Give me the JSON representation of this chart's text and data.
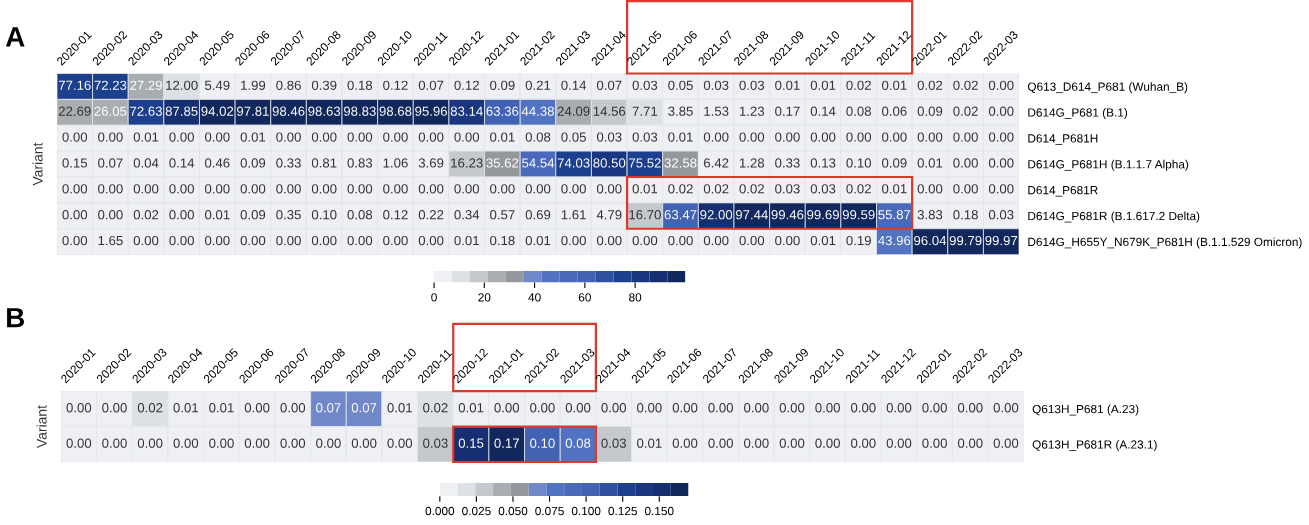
{
  "chart_data": [
    {
      "type": "heatmap",
      "title": "A",
      "ylabel": "Variant",
      "categories": [
        "2020-01",
        "2020-02",
        "2020-03",
        "2020-04",
        "2020-05",
        "2020-06",
        "2020-07",
        "2020-08",
        "2020-09",
        "2020-10",
        "2020-11",
        "2020-12",
        "2021-01",
        "2021-02",
        "2021-03",
        "2021-04",
        "2021-05",
        "2021-06",
        "2021-07",
        "2021-08",
        "2021-09",
        "2021-10",
        "2021-11",
        "2021-12",
        "2022-01",
        "2022-02",
        "2022-03"
      ],
      "y_categories": [
        "Q613_D614_P681 (Wuhan_B)",
        "D614G_P681 (B.1)",
        "D614_P681H",
        "D614G_P681H (B.1.1.7 Alpha)",
        "D614_P681R",
        "D614G_P681R (B.1.617.2 Delta)",
        "D614G_H655Y_N679K_P681H (B.1.1.529 Omicron)"
      ],
      "cells": [
        [
          77.16,
          72.23,
          27.29,
          12.0,
          5.49,
          1.99,
          0.86,
          0.39,
          0.18,
          0.12,
          0.07,
          0.12,
          0.09,
          0.21,
          0.14,
          0.07,
          0.03,
          0.05,
          0.03,
          0.03,
          0.01,
          0.01,
          0.02,
          0.01,
          0.02,
          0.02,
          0.0
        ],
        [
          22.69,
          26.05,
          72.63,
          87.85,
          94.02,
          97.81,
          98.46,
          98.63,
          98.83,
          98.68,
          95.96,
          83.14,
          63.36,
          44.38,
          24.09,
          14.56,
          7.71,
          3.85,
          1.53,
          1.23,
          0.17,
          0.14,
          0.08,
          0.06,
          0.09,
          0.02,
          0.0
        ],
        [
          0.0,
          0.0,
          0.01,
          0.0,
          0.0,
          0.01,
          0.0,
          0.0,
          0.0,
          0.0,
          0.0,
          0.0,
          0.01,
          0.08,
          0.05,
          0.03,
          0.03,
          0.01,
          0.0,
          0.0,
          0.0,
          0.0,
          0.0,
          0.0,
          0.0,
          0.0,
          0.0
        ],
        [
          0.15,
          0.07,
          0.04,
          0.14,
          0.46,
          0.09,
          0.33,
          0.81,
          0.83,
          1.06,
          3.69,
          16.23,
          35.62,
          54.54,
          74.03,
          80.5,
          75.52,
          32.58,
          6.42,
          1.28,
          0.33,
          0.13,
          0.1,
          0.09,
          0.01,
          0.0,
          0.0
        ],
        [
          0.0,
          0.0,
          0.0,
          0.0,
          0.0,
          0.0,
          0.0,
          0.0,
          0.0,
          0.0,
          0.0,
          0.0,
          0.0,
          0.0,
          0.0,
          0.0,
          0.01,
          0.02,
          0.02,
          0.02,
          0.03,
          0.03,
          0.02,
          0.01,
          0.0,
          0.0,
          0.0
        ],
        [
          0.0,
          0.0,
          0.02,
          0.0,
          0.01,
          0.09,
          0.35,
          0.1,
          0.08,
          0.12,
          0.22,
          0.34,
          0.57,
          0.69,
          1.61,
          4.79,
          16.7,
          63.47,
          92.0,
          97.44,
          99.46,
          99.69,
          99.59,
          55.87,
          3.83,
          0.18,
          0.03
        ],
        [
          0.0,
          1.65,
          0.0,
          0.0,
          0.0,
          0.0,
          0.0,
          0.0,
          0.0,
          0.0,
          0.0,
          0.01,
          0.18,
          0.01,
          0.0,
          0.0,
          0.0,
          0.0,
          0.0,
          0.0,
          0.0,
          0.01,
          0.19,
          43.96,
          96.04,
          99.79,
          99.97
        ]
      ],
      "cell_labels": [
        [
          "77.16",
          "72.23",
          "27.29",
          "12.00",
          "5.49",
          "1.99",
          "0.86",
          "0.39",
          "0.18",
          "0.12",
          "0.07",
          "0.12",
          "0.09",
          "0.21",
          "0.14",
          "0.07",
          "0.03",
          "0.05",
          "0.03",
          "0.03",
          "0.01",
          "0.01",
          "0.02",
          "0.01",
          "0.02",
          "0.02",
          "0.00"
        ],
        [
          "22.69",
          "26.05",
          "72.63",
          "87.85",
          "94.02",
          "97.81",
          "98.46",
          "98.63",
          "98.83",
          "98.68",
          "95.96",
          "83.14",
          "63.36",
          "44.38",
          "24.09",
          "14.56",
          "7.71",
          "3.85",
          "1.53",
          "1.23",
          "0.17",
          "0.14",
          "0.08",
          "0.06",
          "0.09",
          "0.02",
          "0.00"
        ],
        [
          "0.00",
          "0.00",
          "0.01",
          "0.00",
          "0.00",
          "0.01",
          "0.00",
          "0.00",
          "0.00",
          "0.00",
          "0.00",
          "0.00",
          "0.01",
          "0.08",
          "0.05",
          "0.03",
          "0.03",
          "0.01",
          "0.00",
          "0.00",
          "0.00",
          "0.00",
          "0.00",
          "0.00",
          "0.00",
          "0.00",
          "0.00"
        ],
        [
          "0.15",
          "0.07",
          "0.04",
          "0.14",
          "0.46",
          "0.09",
          "0.33",
          "0.81",
          "0.83",
          "1.06",
          "3.69",
          "16.23",
          "35.62",
          "54.54",
          "74.03",
          "80.50",
          "75.52",
          "32.58",
          "6.42",
          "1.28",
          "0.33",
          "0.13",
          "0.10",
          "0.09",
          "0.01",
          "0.00",
          "0.00"
        ],
        [
          "0.00",
          "0.00",
          "0.00",
          "0.00",
          "0.00",
          "0.00",
          "0.00",
          "0.00",
          "0.00",
          "0.00",
          "0.00",
          "0.00",
          "0.00",
          "0.00",
          "0.00",
          "0.00",
          "0.01",
          "0.02",
          "0.02",
          "0.02",
          "0.03",
          "0.03",
          "0.02",
          "0.01",
          "0.00",
          "0.00",
          "0.00"
        ],
        [
          "0.00",
          "0.00",
          "0.02",
          "0.00",
          "0.01",
          "0.09",
          "0.35",
          "0.10",
          "0.08",
          "0.12",
          "0.22",
          "0.34",
          "0.57",
          "0.69",
          "1.61",
          "4.79",
          "16.70",
          "63.47",
          "92.00",
          "97.44",
          "99.46",
          "99.69",
          "99.59",
          "55.87",
          "3.83",
          "0.18",
          "0.03"
        ],
        [
          "0.00",
          "1.65",
          "0.00",
          "0.00",
          "0.00",
          "0.00",
          "0.00",
          "0.00",
          "0.00",
          "0.00",
          "0.00",
          "0.01",
          "0.18",
          "0.01",
          "0.00",
          "0.00",
          "0.00",
          "0.00",
          "0.00",
          "0.00",
          "0.00",
          "0.01",
          "0.19",
          "43.96",
          "96.04",
          "99.79",
          "99.97"
        ]
      ],
      "clim": [
        0,
        100
      ],
      "cticks": [
        0,
        20,
        40,
        60,
        80
      ]
    },
    {
      "type": "heatmap",
      "title": "B",
      "ylabel": "Variant",
      "categories": [
        "2020-01",
        "2020-02",
        "2020-03",
        "2020-04",
        "2020-05",
        "2020-06",
        "2020-07",
        "2020-08",
        "2020-09",
        "2020-10",
        "2020-11",
        "2020-12",
        "2021-01",
        "2021-02",
        "2021-03",
        "2021-04",
        "2021-05",
        "2021-06",
        "2021-07",
        "2021-08",
        "2021-09",
        "2021-10",
        "2021-11",
        "2021-12",
        "2022-01",
        "2022-02",
        "2022-03"
      ],
      "y_categories": [
        "Q613H_P681 (A.23)",
        "Q613H_P681R (A.23.1)"
      ],
      "cells": [
        [
          0.0,
          0.0,
          0.02,
          0.01,
          0.01,
          0.0,
          0.0,
          0.07,
          0.07,
          0.01,
          0.02,
          0.01,
          0.0,
          0.0,
          0.0,
          0.0,
          0.0,
          0.0,
          0.0,
          0.0,
          0.0,
          0.0,
          0.0,
          0.0,
          0.0,
          0.0,
          0.0
        ],
        [
          0.0,
          0.0,
          0.0,
          0.0,
          0.0,
          0.0,
          0.0,
          0.0,
          0.0,
          0.0,
          0.03,
          0.15,
          0.17,
          0.1,
          0.08,
          0.03,
          0.01,
          0.0,
          0.0,
          0.0,
          0.0,
          0.0,
          0.0,
          0.0,
          0.0,
          0.0,
          0.0
        ]
      ],
      "cell_labels": [
        [
          "0.00",
          "0.00",
          "0.02",
          "0.01",
          "0.01",
          "0.00",
          "0.00",
          "0.07",
          "0.07",
          "0.01",
          "0.02",
          "0.01",
          "0.00",
          "0.00",
          "0.00",
          "0.00",
          "0.00",
          "0.00",
          "0.00",
          "0.00",
          "0.00",
          "0.00",
          "0.00",
          "0.00",
          "0.00",
          "0.00",
          "0.00"
        ],
        [
          "0.00",
          "0.00",
          "0.00",
          "0.00",
          "0.00",
          "0.00",
          "0.00",
          "0.00",
          "0.00",
          "0.00",
          "0.03",
          "0.15",
          "0.17",
          "0.10",
          "0.08",
          "0.03",
          "0.01",
          "0.00",
          "0.00",
          "0.00",
          "0.00",
          "0.00",
          "0.00",
          "0.00",
          "0.00",
          "0.00",
          "0.00"
        ]
      ],
      "clim": [
        0,
        0.17
      ],
      "cticks": [
        {
          "value": 0,
          "label": "0.000"
        },
        {
          "value": 0.025,
          "label": "0.025"
        },
        {
          "value": 0.05,
          "label": "0.050"
        },
        {
          "value": 0.075,
          "label": "0.075"
        },
        {
          "value": 0.1,
          "label": "0.100"
        },
        {
          "value": 0.125,
          "label": "0.125"
        },
        {
          "value": 0.15,
          "label": "0.150"
        }
      ]
    }
  ]
}
